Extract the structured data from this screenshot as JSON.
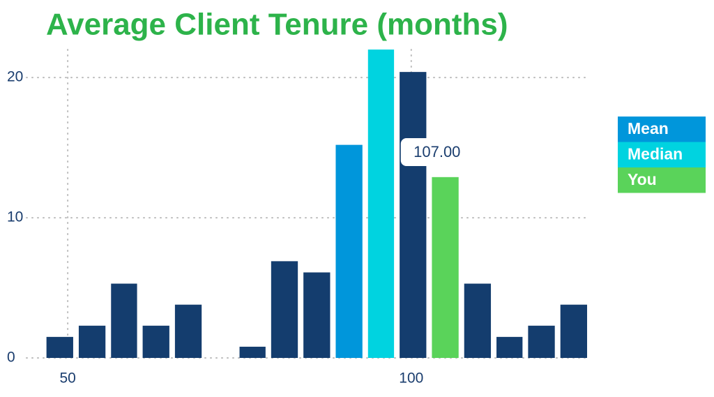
{
  "chart_data": {
    "type": "histogram",
    "title": "Average Client Tenure (months)",
    "bins": [
      46.5,
      51.2,
      55.9,
      60.5,
      65.2,
      69.9,
      74.6,
      79.2,
      83.9,
      88.6,
      93.3,
      97.9,
      102.6,
      107.3,
      112.0,
      116.6,
      121.3,
      126.0
    ],
    "counts": [
      1.5,
      2.3,
      5.3,
      2.3,
      3.8,
      0,
      0.8,
      6.9,
      6.1,
      15.2,
      22,
      20.4,
      12.9,
      5.3,
      1.5,
      2.3,
      3.8
    ],
    "colors": [
      "#143d6e",
      "#143d6e",
      "#143d6e",
      "#143d6e",
      "#143d6e",
      "#143d6e",
      "#143d6e",
      "#143d6e",
      "#143d6e",
      "#0096db",
      "#00d3e0",
      "#143d6e",
      "#5ad35a",
      "#143d6e",
      "#143d6e",
      "#143d6e",
      "#143d6e"
    ],
    "legend": [
      {
        "name": "Mean",
        "color": "#0096db"
      },
      {
        "name": "Median",
        "color": "#00d3e0"
      },
      {
        "name": "You",
        "color": "#5ad35a"
      }
    ],
    "callout": {
      "value": 107,
      "label": "107.00"
    },
    "xlim": [
      44,
      126
    ],
    "xticks": [
      50,
      100
    ],
    "ylim": [
      0,
      22
    ],
    "yticks": [
      0,
      10,
      20
    ],
    "grid": true
  }
}
